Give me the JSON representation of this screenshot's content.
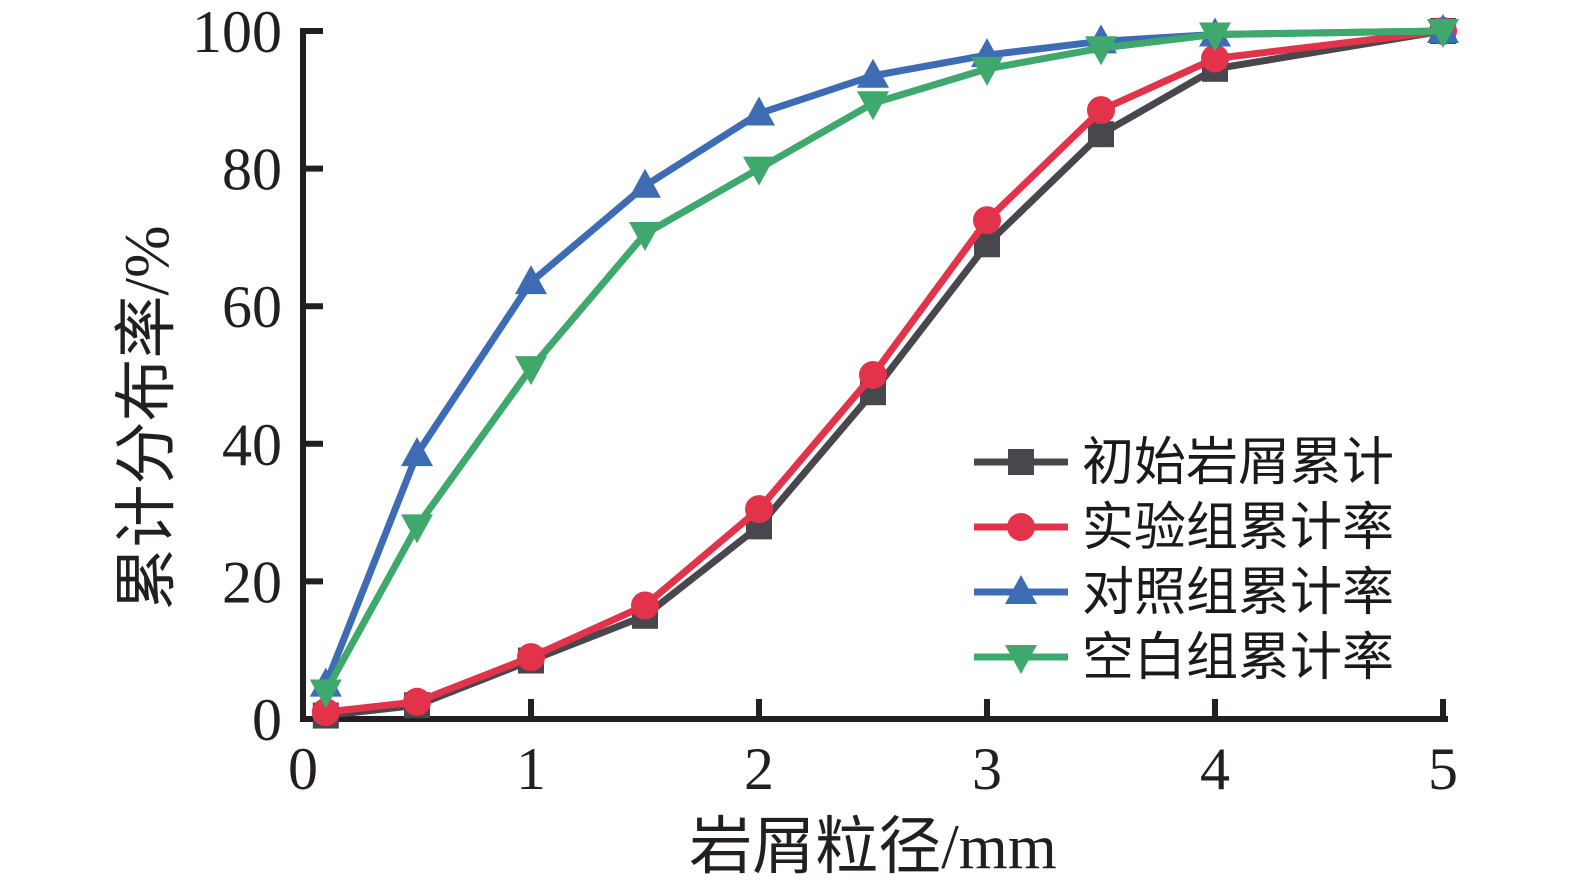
{
  "chart_data": {
    "type": "line",
    "title": "",
    "xlabel": "岩屑粒径/mm",
    "ylabel": "累计分布率/%",
    "xlim": [
      0,
      5
    ],
    "ylim": [
      0,
      100
    ],
    "x_ticks": [
      0,
      1,
      2,
      3,
      4,
      5
    ],
    "y_ticks": [
      0,
      20,
      40,
      60,
      80,
      100
    ],
    "grid": false,
    "legend_position": "inside-right",
    "axis_color": "#231f20",
    "x": [
      0.1,
      0.5,
      1,
      1.5,
      2,
      2.5,
      3,
      3.5,
      4,
      5
    ],
    "series": [
      {
        "name": "初始岩屑累计",
        "marker": "square",
        "color": "#49474e",
        "values": [
          0.5,
          2,
          8.5,
          15,
          28,
          47.5,
          69,
          85,
          94.5,
          100
        ]
      },
      {
        "name": "实验组累计率",
        "marker": "circle",
        "color": "#e2334b",
        "values": [
          1,
          2.5,
          9,
          16.5,
          30.5,
          50,
          72.5,
          88.5,
          96,
          100
        ]
      },
      {
        "name": "对照组累计率",
        "marker": "triangle-up",
        "color": "#3d6cb4",
        "values": [
          5,
          38.5,
          63.5,
          77.5,
          88,
          93.5,
          96.5,
          98.5,
          99.5,
          100
        ]
      },
      {
        "name": "空白组累计率",
        "marker": "triangle-down",
        "color": "#3fa86c",
        "values": [
          4,
          28,
          51,
          70.5,
          80,
          89.5,
          94.5,
          97.5,
          99.5,
          100
        ]
      }
    ]
  }
}
